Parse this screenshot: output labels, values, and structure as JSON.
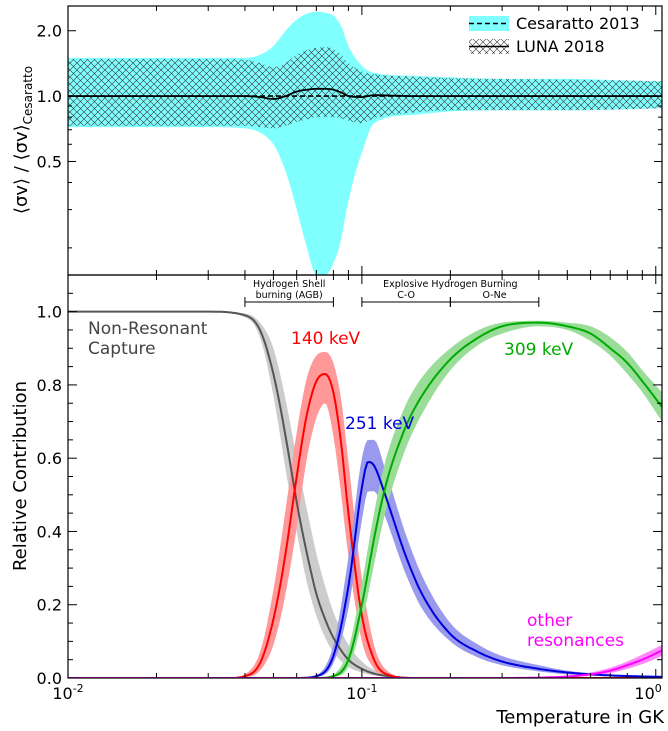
{
  "chart_data": [
    {
      "type": "area",
      "panel": "top",
      "ylabel_main": "⟨σv⟩ / ⟨σv⟩",
      "ylabel_sub": "Cesaratto",
      "xscale": "log",
      "xlim": [
        0.01,
        1.05
      ],
      "ylim": [
        0.15,
        2.6
      ],
      "yscale": "log",
      "yticks": [
        {
          "v": 0.5,
          "label": "0.5"
        },
        {
          "v": 1.0,
          "label": "1.0"
        },
        {
          "v": 2.0,
          "label": "2.0"
        }
      ],
      "legend": {
        "placement": "top-right",
        "entries": [
          {
            "label": "Cesaratto 2013",
            "style": "dashed",
            "fill": "#80ffff"
          },
          {
            "label": "LUNA 2018",
            "style": "solid",
            "fill": "hatched"
          }
        ]
      },
      "series": [
        {
          "name": "Cesaratto 2013",
          "x": [
            0.01,
            0.02,
            0.03,
            0.04,
            0.045,
            0.05,
            0.055,
            0.06,
            0.065,
            0.07,
            0.075,
            0.08,
            0.085,
            0.09,
            0.1,
            0.11,
            0.15,
            0.2,
            0.3,
            0.5,
            0.8,
            1.05
          ],
          "lower": [
            0.72,
            0.72,
            0.72,
            0.71,
            0.68,
            0.6,
            0.45,
            0.3,
            0.2,
            0.15,
            0.15,
            0.17,
            0.22,
            0.33,
            0.55,
            0.75,
            0.82,
            0.85,
            0.86,
            0.86,
            0.87,
            0.88
          ],
          "upper": [
            1.5,
            1.5,
            1.5,
            1.5,
            1.55,
            1.7,
            2.0,
            2.25,
            2.4,
            2.45,
            2.42,
            2.35,
            2.1,
            1.7,
            1.38,
            1.28,
            1.24,
            1.22,
            1.2,
            1.2,
            1.18,
            1.17
          ],
          "central": [
            1.0,
            1.0,
            1.0,
            1.0,
            1.0,
            1.0,
            1.0,
            1.0,
            1.0,
            1.0,
            1.0,
            1.0,
            1.0,
            1.0,
            1.0,
            1.0,
            1.0,
            1.0,
            1.0,
            1.0,
            1.0,
            1.0
          ]
        },
        {
          "name": "LUNA 2018",
          "x": [
            0.01,
            0.02,
            0.03,
            0.04,
            0.045,
            0.05,
            0.055,
            0.06,
            0.065,
            0.07,
            0.075,
            0.08,
            0.085,
            0.09,
            0.1,
            0.11,
            0.15,
            0.2,
            0.3,
            0.5,
            0.8,
            1.05
          ],
          "lower": [
            0.73,
            0.73,
            0.73,
            0.73,
            0.72,
            0.71,
            0.73,
            0.76,
            0.78,
            0.8,
            0.8,
            0.8,
            0.79,
            0.77,
            0.75,
            0.79,
            0.84,
            0.86,
            0.86,
            0.86,
            0.87,
            0.88
          ],
          "upper": [
            1.48,
            1.48,
            1.48,
            1.47,
            1.42,
            1.36,
            1.42,
            1.55,
            1.63,
            1.67,
            1.68,
            1.65,
            1.55,
            1.42,
            1.3,
            1.26,
            1.23,
            1.21,
            1.2,
            1.19,
            1.18,
            1.17
          ],
          "central": [
            1.0,
            1.0,
            1.0,
            1.0,
            0.99,
            0.97,
            1.0,
            1.05,
            1.07,
            1.08,
            1.08,
            1.07,
            1.04,
            1.0,
            0.99,
            1.01,
            1.0,
            1.0,
            1.0,
            1.0,
            1.0,
            1.0
          ]
        }
      ]
    },
    {
      "type": "line",
      "panel": "bottom",
      "xlabel": "Temperature in GK",
      "ylabel": "Relative Contribution",
      "xscale": "log",
      "xlim": [
        0.01,
        1.05
      ],
      "ylim": [
        0.0,
        1.1
      ],
      "xticks": [
        {
          "v": 0.01,
          "base": "10",
          "exp": "-2"
        },
        {
          "v": 0.1,
          "base": "10",
          "exp": "-1"
        },
        {
          "v": 1.0,
          "base": "10",
          "exp": "0"
        }
      ],
      "yticks": [
        "0.0",
        "0.2",
        "0.4",
        "0.6",
        "0.8",
        "1.0"
      ],
      "annotations": {
        "regions": [
          {
            "lines": [
              "Hydrogen Shell",
              "burning (AGB)"
            ],
            "x0": 0.04,
            "x1": 0.08
          },
          {
            "lines": [
              "Explosive Hydrogen Burning",
              "C-O"
            ],
            "x0": 0.1,
            "x1": 0.2
          },
          {
            "lines": [
              "O-Ne"
            ],
            "x0": 0.2,
            "x1": 0.4
          }
        ]
      },
      "series": [
        {
          "name": "Non-Resonant Capture",
          "label_lines": [
            "Non-Resonant",
            "Capture"
          ],
          "color": "#555555",
          "band": "#cccccc",
          "x": [
            0.01,
            0.03,
            0.04,
            0.045,
            0.05,
            0.055,
            0.06,
            0.065,
            0.07,
            0.075,
            0.08,
            0.09,
            0.1,
            0.11,
            0.13,
            0.15,
            1.05
          ],
          "central": [
            1.0,
            1.0,
            0.99,
            0.95,
            0.83,
            0.66,
            0.48,
            0.34,
            0.23,
            0.16,
            0.11,
            0.05,
            0.025,
            0.012,
            0.003,
            0.0,
            0.0
          ],
          "lower": [
            1.0,
            1.0,
            0.985,
            0.93,
            0.77,
            0.57,
            0.4,
            0.26,
            0.17,
            0.11,
            0.07,
            0.03,
            0.015,
            0.007,
            0.002,
            0.0,
            0.0
          ],
          "upper": [
            1.0,
            1.0,
            0.995,
            0.97,
            0.9,
            0.76,
            0.6,
            0.46,
            0.34,
            0.25,
            0.18,
            0.09,
            0.045,
            0.022,
            0.006,
            0.0,
            0.0
          ]
        },
        {
          "name": "140 keV",
          "label_lines": [
            "140 keV"
          ],
          "color": "#ff0000",
          "band": "#ff9999",
          "x": [
            0.01,
            0.035,
            0.04,
            0.045,
            0.05,
            0.055,
            0.06,
            0.065,
            0.07,
            0.075,
            0.08,
            0.085,
            0.09,
            0.1,
            0.11,
            0.12,
            0.15,
            1.05
          ],
          "central": [
            0.0,
            0.0,
            0.005,
            0.04,
            0.16,
            0.34,
            0.55,
            0.72,
            0.81,
            0.83,
            0.78,
            0.64,
            0.45,
            0.17,
            0.05,
            0.012,
            0.0,
            0.0
          ],
          "lower": [
            0.0,
            0.0,
            0.002,
            0.02,
            0.09,
            0.23,
            0.41,
            0.6,
            0.71,
            0.75,
            0.66,
            0.5,
            0.33,
            0.1,
            0.025,
            0.006,
            0.0,
            0.0
          ],
          "upper": [
            0.0,
            0.0,
            0.01,
            0.07,
            0.24,
            0.46,
            0.67,
            0.82,
            0.88,
            0.89,
            0.86,
            0.76,
            0.59,
            0.27,
            0.09,
            0.025,
            0.0,
            0.0
          ]
        },
        {
          "name": "251 keV",
          "label_lines": [
            "251 keV"
          ],
          "color": "#0000dd",
          "band": "#9999ee",
          "x": [
            0.01,
            0.06,
            0.07,
            0.08,
            0.09,
            0.1,
            0.105,
            0.11,
            0.12,
            0.14,
            0.16,
            0.2,
            0.25,
            0.3,
            0.4,
            0.5,
            0.7,
            1.05
          ],
          "central": [
            0.0,
            0.0,
            0.005,
            0.06,
            0.25,
            0.52,
            0.59,
            0.58,
            0.5,
            0.34,
            0.23,
            0.12,
            0.07,
            0.045,
            0.025,
            0.015,
            0.007,
            0.003
          ],
          "lower": [
            0.0,
            0.0,
            0.003,
            0.04,
            0.19,
            0.43,
            0.51,
            0.51,
            0.44,
            0.29,
            0.19,
            0.1,
            0.055,
            0.035,
            0.018,
            0.01,
            0.005,
            0.002
          ],
          "upper": [
            0.0,
            0.0,
            0.008,
            0.09,
            0.33,
            0.6,
            0.65,
            0.65,
            0.57,
            0.4,
            0.28,
            0.15,
            0.09,
            0.06,
            0.035,
            0.02,
            0.01,
            0.005
          ]
        },
        {
          "name": "309 keV",
          "label_lines": [
            "309 keV"
          ],
          "color": "#00aa00",
          "band": "#99dd99",
          "x": [
            0.01,
            0.07,
            0.08,
            0.09,
            0.1,
            0.11,
            0.12,
            0.14,
            0.16,
            0.2,
            0.25,
            0.3,
            0.4,
            0.5,
            0.6,
            0.7,
            0.8,
            0.9,
            1.05
          ],
          "central": [
            0.0,
            0.0,
            0.005,
            0.05,
            0.2,
            0.38,
            0.52,
            0.68,
            0.77,
            0.87,
            0.93,
            0.96,
            0.97,
            0.96,
            0.94,
            0.9,
            0.86,
            0.81,
            0.74
          ],
          "lower": [
            0.0,
            0.0,
            0.003,
            0.03,
            0.15,
            0.31,
            0.45,
            0.62,
            0.72,
            0.84,
            0.91,
            0.94,
            0.96,
            0.95,
            0.92,
            0.88,
            0.83,
            0.78,
            0.7
          ],
          "upper": [
            0.0,
            0.0,
            0.01,
            0.08,
            0.26,
            0.45,
            0.59,
            0.74,
            0.82,
            0.9,
            0.95,
            0.97,
            0.975,
            0.97,
            0.96,
            0.93,
            0.89,
            0.84,
            0.78
          ]
        },
        {
          "name": "other resonances",
          "label_lines": [
            "other",
            "resonances"
          ],
          "color": "#ff00ff",
          "band": "#ff88ff",
          "x": [
            0.01,
            0.3,
            0.4,
            0.5,
            0.6,
            0.7,
            0.8,
            0.9,
            1.05
          ],
          "central": [
            0.0,
            0.0,
            0.001,
            0.004,
            0.01,
            0.02,
            0.035,
            0.05,
            0.075
          ],
          "lower": [
            0.0,
            0.0,
            0.0,
            0.002,
            0.006,
            0.013,
            0.025,
            0.038,
            0.06
          ],
          "upper": [
            0.0,
            0.0,
            0.002,
            0.006,
            0.015,
            0.028,
            0.045,
            0.064,
            0.09
          ]
        }
      ]
    }
  ]
}
